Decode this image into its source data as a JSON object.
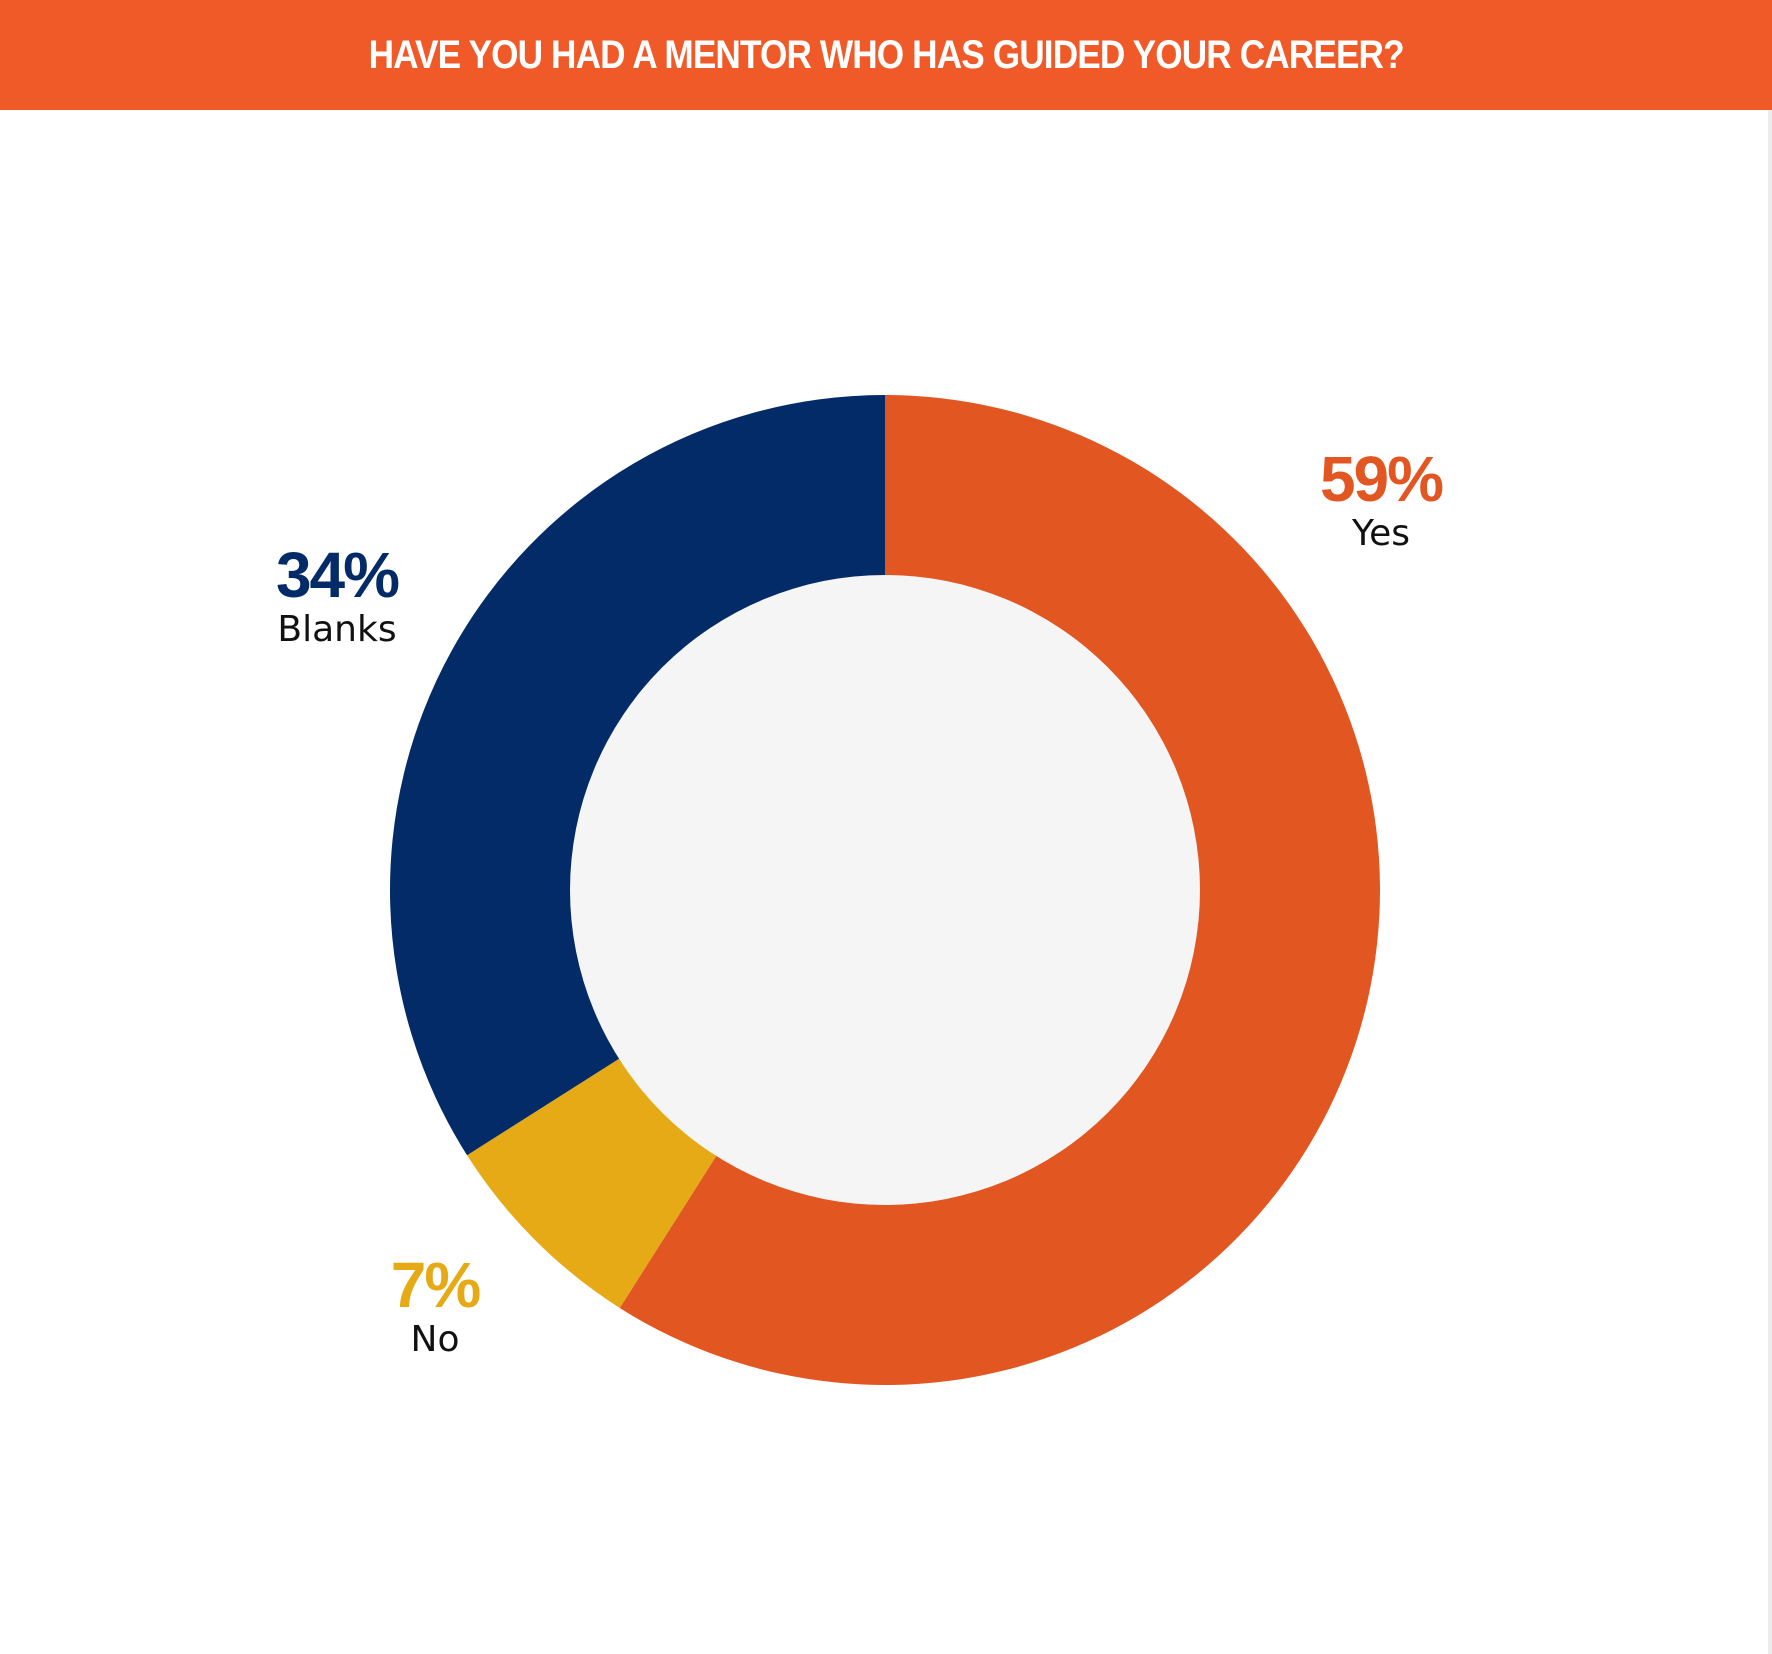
{
  "header": {
    "title": "HAVE YOU HAD A MENTOR WHO HAS GUIDED YOUR CAREER?",
    "background": "#f05a28"
  },
  "chart_data": {
    "type": "pie",
    "title": "HAVE YOU HAD A MENTOR WHO HAS GUIDED YOUR CAREER?",
    "style": "donut",
    "unit": "%",
    "slices": [
      {
        "label": "Yes",
        "value": 59,
        "value_label": "59%",
        "color": "#e25622"
      },
      {
        "label": "No",
        "value": 7,
        "value_label": "7%",
        "color": "#e5aa16"
      },
      {
        "label": "Blanks",
        "value": 34,
        "value_label": "34%",
        "color": "#032b67"
      }
    ],
    "center_fill": "#f5f5f5",
    "start_angle": "12 o'clock",
    "direction": "clockwise"
  }
}
